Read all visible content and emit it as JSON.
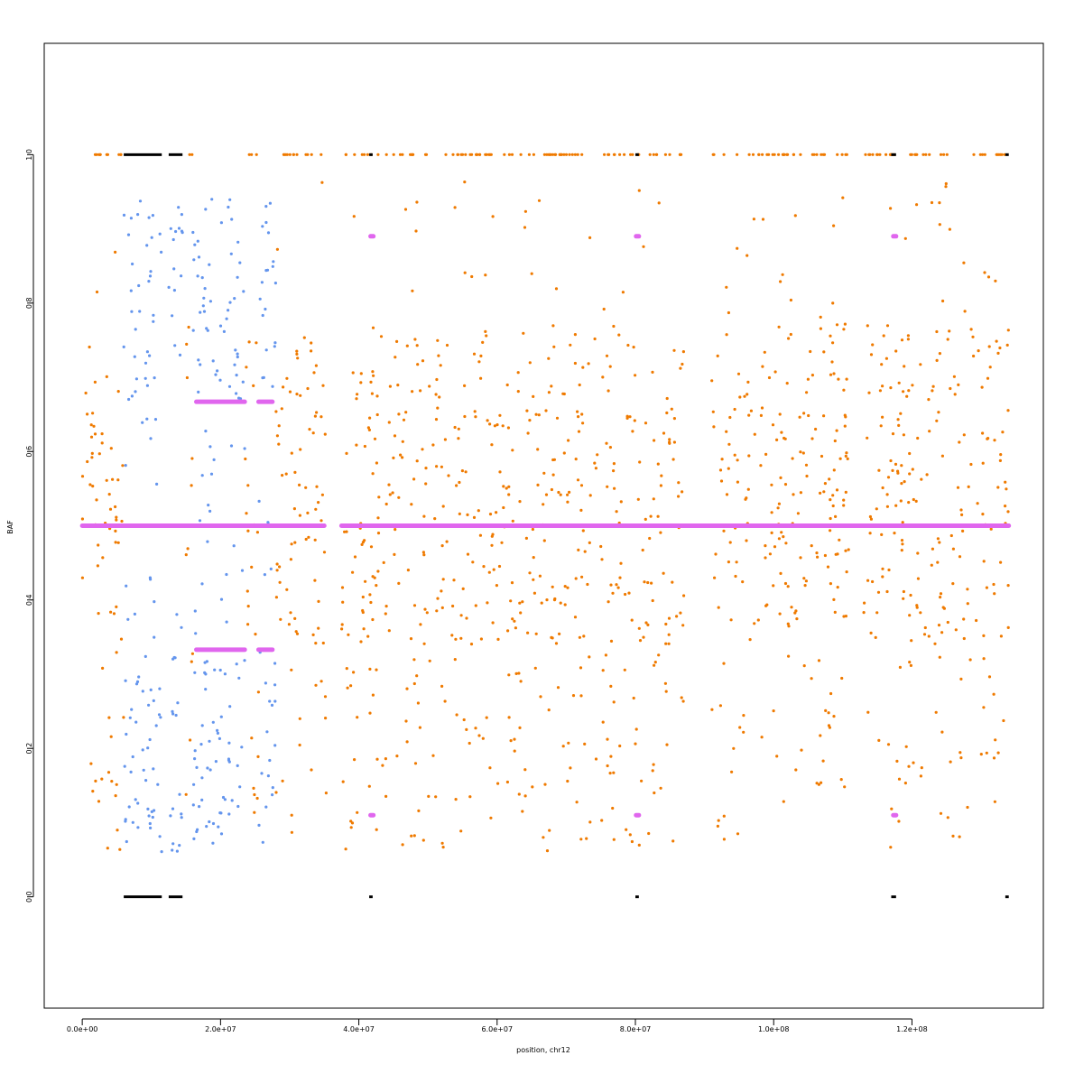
{
  "chart_data": {
    "type": "scatter",
    "title": "",
    "xlabel": "position, chr12",
    "ylabel": "BAF",
    "xlim": [
      -5500000,
      139000000
    ],
    "ylim": [
      -0.15,
      1.15
    ],
    "x_ticks": [
      0,
      20000000,
      40000000,
      60000000,
      80000000,
      100000000,
      120000000
    ],
    "x_tick_labels": [
      "0.0e+00",
      "2.0e+07",
      "4.0e+07",
      "6.0e+07",
      "8.0e+07",
      "1.0e+08",
      "1.2e+08"
    ],
    "y_ticks": [
      0.0,
      0.2,
      0.4,
      0.6,
      0.8,
      1.0
    ],
    "y_tick_labels": [
      "0.0",
      "0.2",
      "0.4",
      "0.6",
      "0.8",
      "1.0"
    ],
    "grid": false,
    "legend": "none",
    "series": [
      {
        "color": "#ef7a00",
        "segments": [
          [
            0,
            6000000
          ],
          [
            15000000,
            16000000
          ],
          [
            23500000,
            25500000
          ],
          [
            28000000,
            35300000
          ],
          [
            37500000,
            74500000
          ],
          [
            75000000,
            87000000
          ],
          [
            91000000,
            111000000
          ],
          [
            113000000,
            134000000
          ]
        ],
        "levels": [
          0.0,
          0.333,
          0.5,
          0.667,
          1.0
        ]
      },
      {
        "color": "#6495ed",
        "segments": [
          [
            6000000,
            11500000
          ],
          [
            12500000,
            14500000
          ],
          [
            16000000,
            23500000
          ],
          [
            25500000,
            28000000
          ]
        ],
        "levels": [
          0.333,
          0.5,
          0.667
        ]
      },
      {
        "color": "#e066ee",
        "segments": [
          [
            0,
            134000000
          ]
        ],
        "levels": [
          0.333,
          0.5,
          0.667,
          0.11,
          0.89
        ]
      },
      {
        "color": "#000000",
        "segments": [
          [
            6000000,
            11500000
          ],
          [
            12500000,
            14500000
          ],
          [
            41500000,
            42000000
          ],
          [
            80000000,
            80500000
          ],
          [
            117000000,
            117700000
          ],
          [
            133500000,
            134000000
          ]
        ],
        "levels": [
          0.0,
          1.0
        ]
      }
    ]
  }
}
